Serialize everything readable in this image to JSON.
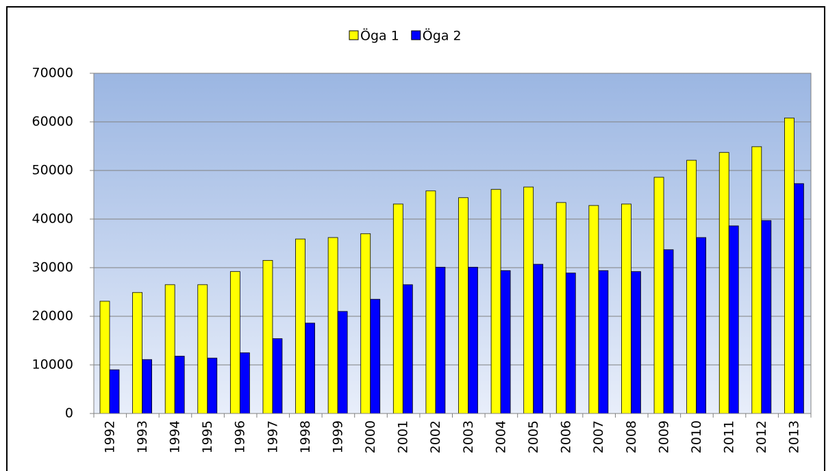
{
  "chart_data": {
    "type": "bar",
    "categories": [
      "1992",
      "1993",
      "1994",
      "1995",
      "1996",
      "1997",
      "1998",
      "1999",
      "2000",
      "2001",
      "2002",
      "2003",
      "2004",
      "2005",
      "2006",
      "2007",
      "2008",
      "2009",
      "2010",
      "2011",
      "2012",
      "2013"
    ],
    "series": [
      {
        "name": "Öga 1",
        "color": "#ffff00",
        "values": [
          23100,
          24900,
          26500,
          26500,
          29200,
          31500,
          35900,
          36200,
          37000,
          43100,
          45800,
          44400,
          46100,
          46600,
          43400,
          42800,
          43100,
          48600,
          52100,
          53700,
          54900,
          60800
        ]
      },
      {
        "name": "Öga 2",
        "color": "#0000ff",
        "values": [
          9000,
          11100,
          11800,
          11400,
          12500,
          15400,
          18600,
          21000,
          23500,
          26500,
          30100,
          30100,
          29400,
          30700,
          28900,
          29400,
          29200,
          33700,
          36200,
          38600,
          39700,
          47300
        ]
      }
    ],
    "ylim": [
      0,
      70000
    ],
    "yticks": [
      0,
      10000,
      20000,
      30000,
      40000,
      50000,
      60000,
      70000
    ],
    "grid": true,
    "legend": "top"
  }
}
